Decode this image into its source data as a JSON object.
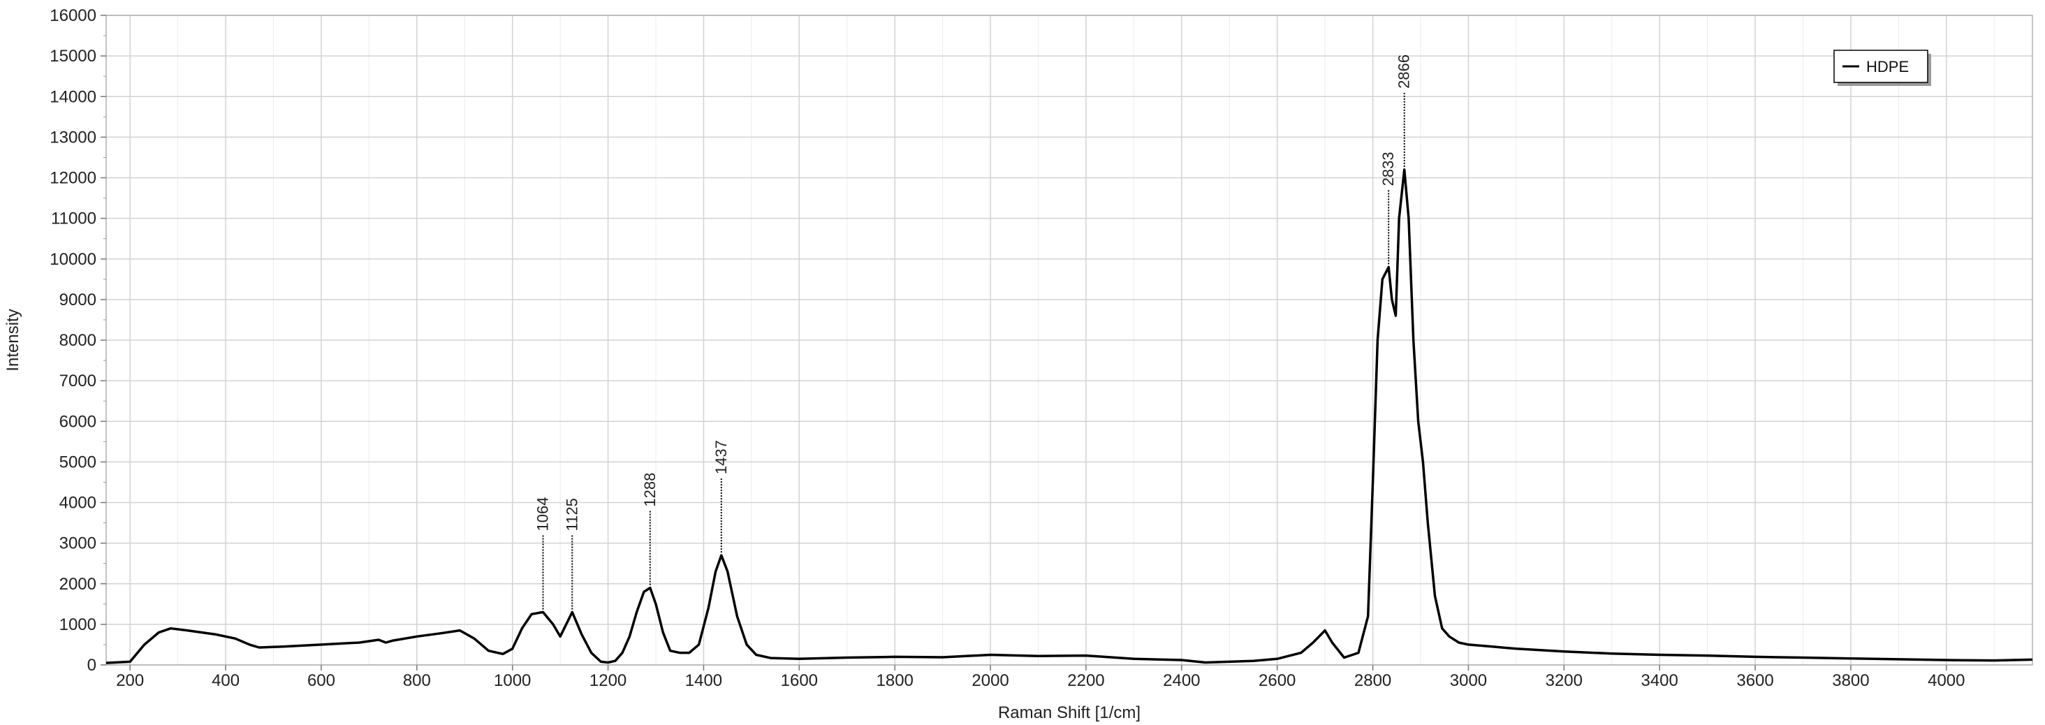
{
  "chart_data": {
    "type": "line",
    "title": "",
    "xlabel": "Raman Shift [1/cm]",
    "ylabel": "Intensity",
    "xlim": [
      150,
      4180
    ],
    "ylim": [
      0,
      16000
    ],
    "xticks": [
      200,
      400,
      600,
      800,
      1000,
      1200,
      1400,
      1600,
      1800,
      2000,
      2200,
      2400,
      2600,
      2800,
      3000,
      3200,
      3400,
      3600,
      3800,
      4000
    ],
    "yticks": [
      0,
      1000,
      2000,
      3000,
      4000,
      5000,
      6000,
      7000,
      8000,
      9000,
      10000,
      11000,
      12000,
      13000,
      14000,
      15000,
      16000
    ],
    "grid": true,
    "legend": {
      "position": "top-right",
      "entries": [
        "HDPE"
      ]
    },
    "series": [
      {
        "name": "HDPE",
        "color": "#000000",
        "x": [
          150,
          200,
          230,
          260,
          285,
          320,
          380,
          420,
          450,
          470,
          520,
          600,
          680,
          720,
          735,
          750,
          800,
          850,
          890,
          920,
          950,
          980,
          1000,
          1020,
          1040,
          1064,
          1085,
          1100,
          1125,
          1145,
          1165,
          1185,
          1200,
          1215,
          1230,
          1245,
          1260,
          1275,
          1288,
          1300,
          1315,
          1330,
          1350,
          1370,
          1390,
          1410,
          1425,
          1437,
          1450,
          1470,
          1490,
          1510,
          1540,
          1600,
          1700,
          1800,
          1900,
          2000,
          2100,
          2200,
          2300,
          2400,
          2450,
          2500,
          2550,
          2600,
          2650,
          2675,
          2700,
          2715,
          2740,
          2770,
          2790,
          2800,
          2810,
          2820,
          2833,
          2840,
          2848,
          2855,
          2866,
          2875,
          2885,
          2895,
          2905,
          2915,
          2930,
          2945,
          2960,
          2980,
          3000,
          3050,
          3100,
          3200,
          3300,
          3400,
          3500,
          3600,
          3700,
          3800,
          3900,
          4000,
          4100,
          4180
        ],
        "y": [
          50,
          80,
          500,
          800,
          900,
          850,
          750,
          650,
          500,
          430,
          450,
          500,
          550,
          620,
          550,
          600,
          700,
          780,
          850,
          650,
          350,
          270,
          400,
          900,
          1250,
          1300,
          1000,
          700,
          1300,
          750,
          300,
          80,
          60,
          100,
          300,
          700,
          1300,
          1800,
          1900,
          1500,
          800,
          350,
          300,
          300,
          500,
          1400,
          2300,
          2700,
          2300,
          1200,
          500,
          250,
          170,
          150,
          180,
          200,
          190,
          250,
          220,
          230,
          150,
          120,
          60,
          80,
          100,
          150,
          300,
          550,
          850,
          550,
          180,
          300,
          1200,
          4500,
          8000,
          9500,
          9800,
          9000,
          8600,
          11000,
          12200,
          11000,
          8000,
          6000,
          5000,
          3500,
          1700,
          900,
          700,
          550,
          500,
          450,
          400,
          330,
          280,
          250,
          230,
          200,
          180,
          160,
          140,
          120,
          110,
          130
        ],
        "peak_labels": [
          {
            "x": 1064,
            "y": 1300,
            "label": "1064"
          },
          {
            "x": 1125,
            "y": 1300,
            "label": "1125"
          },
          {
            "x": 1288,
            "y": 1900,
            "label": "1288"
          },
          {
            "x": 1437,
            "y": 2700,
            "label": "1437"
          },
          {
            "x": 2833,
            "y": 9800,
            "label": "2833"
          },
          {
            "x": 2866,
            "y": 12200,
            "label": "2866"
          }
        ]
      }
    ]
  }
}
